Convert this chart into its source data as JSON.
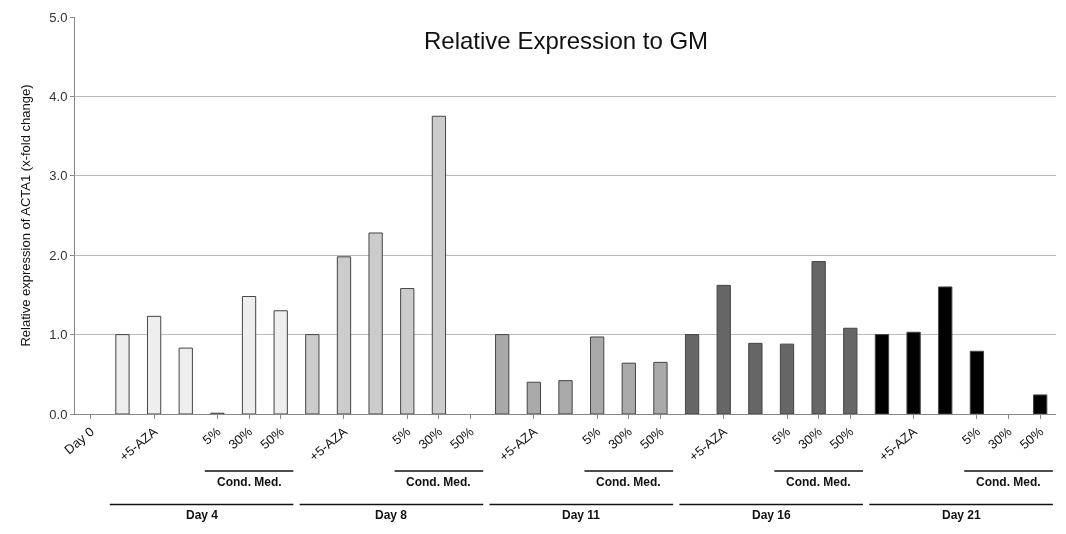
{
  "chart_data": {
    "type": "bar",
    "title": "Relative Expression to GM",
    "ylabel": "Relative expression of ACTA1 (x-fold change)",
    "categories": [
      "Day 0",
      null,
      "+5-AZA",
      null,
      "5%",
      "30%",
      "50%",
      null,
      "+5-AZA",
      null,
      "5%",
      "30%",
      "50%",
      null,
      "+5-AZA",
      null,
      "5%",
      "30%",
      "50%",
      null,
      "+5-AZA",
      null,
      "5%",
      "30%",
      "50%",
      null,
      "+5-AZA",
      null,
      "5%",
      "30%",
      "50%"
    ],
    "values": [
      null,
      1.0,
      1.23,
      0.83,
      0.01,
      1.48,
      1.3,
      1.0,
      1.98,
      2.28,
      1.58,
      3.75,
      null,
      1.0,
      0.4,
      0.42,
      0.97,
      0.64,
      0.65,
      1.0,
      1.62,
      0.89,
      0.88,
      1.92,
      1.08,
      1.0,
      1.03,
      1.6,
      0.79,
      null,
      0.24
    ],
    "colors": [
      "#eeeeee",
      "#eeeeee",
      "#eeeeee",
      "#eeeeee",
      "#eeeeee",
      "#eeeeee",
      "#eeeeee",
      "#cccccc",
      "#cccccc",
      "#cccccc",
      "#cccccc",
      "#cccccc",
      "#cccccc",
      "#aaaaaa",
      "#aaaaaa",
      "#aaaaaa",
      "#aaaaaa",
      "#aaaaaa",
      "#aaaaaa",
      "#666666",
      "#666666",
      "#666666",
      "#666666",
      "#666666",
      "#666666",
      "#000000",
      "#000000",
      "#000000",
      "#000000",
      "#000000",
      "#000000"
    ],
    "ylim": [
      0,
      5
    ],
    "yticks": [
      {
        "value": 0,
        "label": "0.0"
      },
      {
        "value": 1,
        "label": "1.0"
      },
      {
        "value": 2,
        "label": "2.0"
      },
      {
        "value": 3,
        "label": "3.0"
      },
      {
        "value": 4,
        "label": "4.0"
      },
      {
        "value": 5,
        "label": "5.0"
      }
    ],
    "grid": "y",
    "legend": false,
    "annotations": [
      "Cond. Med.",
      "Cond. Med.",
      "Cond. Med.",
      "Cond. Med.",
      "Cond. Med.",
      "Day 4",
      "Day 8",
      "Day 11",
      "Day 16",
      "Day 21"
    ]
  }
}
